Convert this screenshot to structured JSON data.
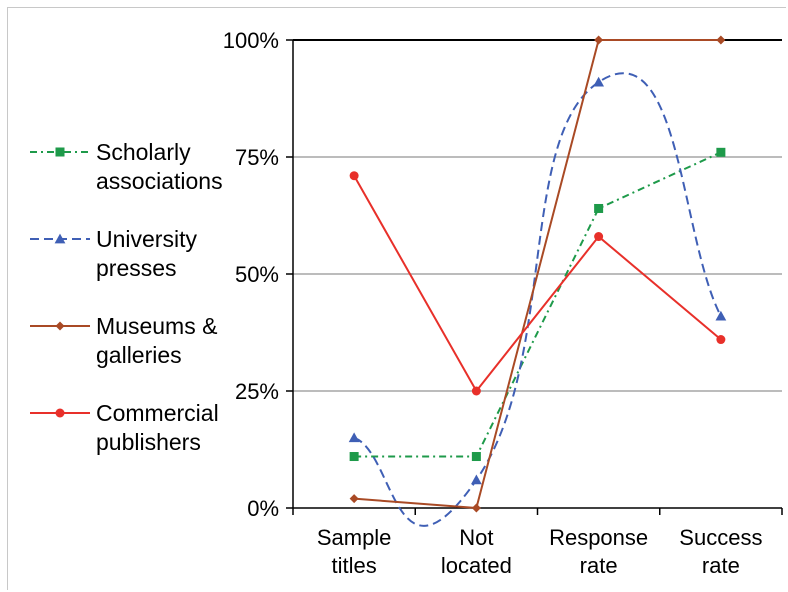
{
  "chart_data": {
    "type": "line",
    "title": "",
    "xlabel": "",
    "ylabel": "",
    "categories": [
      [
        "Sample",
        "titles"
      ],
      [
        "Not",
        "located"
      ],
      [
        "Response",
        "rate"
      ],
      [
        "Success",
        "rate"
      ]
    ],
    "ylim": [
      0,
      100
    ],
    "yticks": [
      {
        "value": 0,
        "label": "0%"
      },
      {
        "value": 25,
        "label": "25%"
      },
      {
        "value": 50,
        "label": "50%"
      },
      {
        "value": 75,
        "label": "75%"
      },
      {
        "value": 100,
        "label": "100%"
      }
    ],
    "grid": true,
    "legend_position": "left",
    "series": [
      {
        "name": [
          "Scholarly",
          "associations"
        ],
        "values": [
          11,
          11,
          64,
          76
        ],
        "color": "#1e9a4a",
        "marker": "square",
        "dash": "dash-dot",
        "smooth": false
      },
      {
        "name": [
          "University",
          "presses"
        ],
        "values": [
          15,
          6,
          91,
          41
        ],
        "color": "#3f5fb5",
        "marker": "triangle",
        "dash": "dash",
        "smooth": true
      },
      {
        "name": [
          "Museums &",
          "galleries"
        ],
        "values": [
          2,
          0,
          100,
          100
        ],
        "color": "#a94a25",
        "marker": "diamond",
        "dash": "solid",
        "smooth": false
      },
      {
        "name": [
          "Commercial",
          "publishers"
        ],
        "values": [
          71,
          25,
          58,
          36
        ],
        "color": "#e8302a",
        "marker": "circle",
        "dash": "solid",
        "smooth": false
      }
    ]
  }
}
